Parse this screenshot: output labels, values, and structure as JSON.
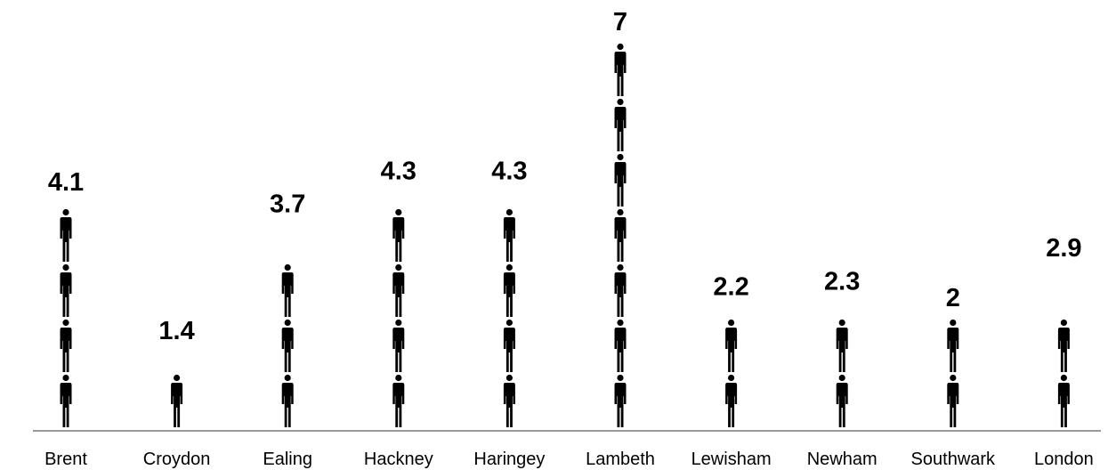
{
  "chart_data": {
    "type": "bar",
    "style": "pictograph",
    "icon": "person-icon",
    "categories": [
      "Brent",
      "Croydon",
      "Ealing",
      "Hackney",
      "Haringey",
      "Lambeth",
      "Lewisham",
      "Newham",
      "Southwark",
      "London"
    ],
    "values": [
      4.1,
      1.4,
      3.7,
      4.3,
      4.3,
      7,
      2.2,
      2.3,
      2,
      2.9
    ],
    "value_labels": [
      "4.1",
      "1.4",
      "3.7",
      "4.3",
      "4.3",
      "7",
      "2.2",
      "2.3",
      "2",
      "2.9"
    ],
    "title": "",
    "xlabel": "",
    "ylabel": "",
    "ylim": [
      0,
      7
    ],
    "grid": false,
    "legend": "none",
    "colors": {
      "icon": "#000000",
      "axis": "#999999",
      "text": "#000000"
    }
  }
}
